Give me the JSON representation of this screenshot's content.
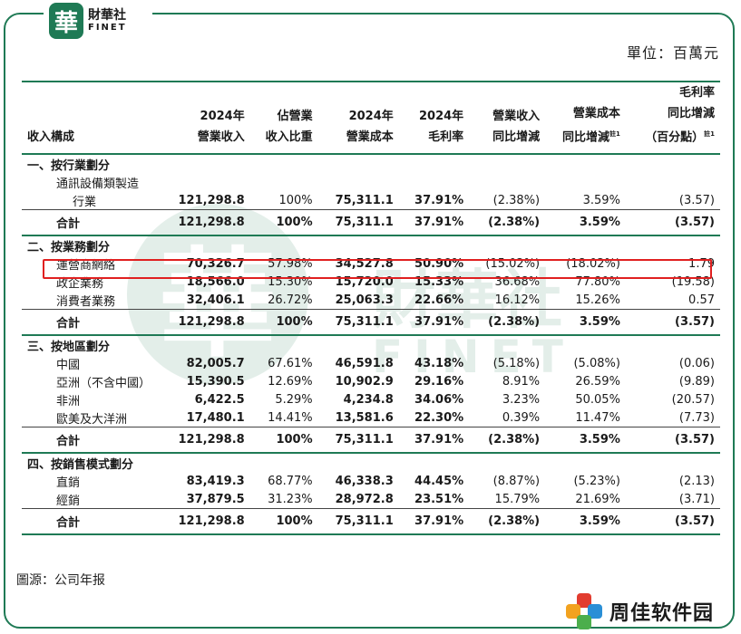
{
  "logo": {
    "mark": "華",
    "cn": "財華社",
    "en": "FINET"
  },
  "unit": "單位：百萬元",
  "watermark": {
    "mark": "華",
    "cn": "財華社",
    "en": "FINET"
  },
  "headers": {
    "col0": "收入構成",
    "col1": [
      "2024年",
      "營業收入"
    ],
    "col2": [
      "佔營業",
      "收入比重"
    ],
    "col3": [
      "2024年",
      "營業成本"
    ],
    "col4": [
      "2024年",
      "毛利率"
    ],
    "col5": [
      "營業收入",
      "同比增減"
    ],
    "col6": [
      "營業成本",
      "同比增減"
    ],
    "col7": [
      "毛利率",
      "同比增減",
      "（百分點）"
    ],
    "note": "註1"
  },
  "sections": {
    "s1": {
      "title": "一、按行業劃分",
      "row1": {
        "label1": "通訊設備類製造",
        "label2": "行業",
        "v": [
          "121,298.8",
          "100%",
          "75,311.1",
          "37.91%",
          "(2.38%)",
          "3.59%",
          "(3.57)"
        ]
      },
      "total": {
        "label": "合計",
        "v": [
          "121,298.8",
          "100%",
          "75,311.1",
          "37.91%",
          "(2.38%)",
          "3.59%",
          "(3.57)"
        ]
      }
    },
    "s2": {
      "title": "二、按業務劃分",
      "rows": [
        {
          "label": "運營商網絡",
          "v": [
            "70,326.7",
            "57.98%",
            "34,527.8",
            "50.90%",
            "(15.02%)",
            "(18.02%)",
            "1.79"
          ]
        },
        {
          "label": "政企業務",
          "v": [
            "18,566.0",
            "15.30%",
            "15,720.0",
            "15.33%",
            "36.68%",
            "77.80%",
            "(19.58)"
          ]
        },
        {
          "label": "消費者業務",
          "v": [
            "32,406.1",
            "26.72%",
            "25,063.3",
            "22.66%",
            "16.12%",
            "15.26%",
            "0.57"
          ]
        }
      ],
      "total": {
        "label": "合計",
        "v": [
          "121,298.8",
          "100%",
          "75,311.1",
          "37.91%",
          "(2.38%)",
          "3.59%",
          "(3.57)"
        ]
      }
    },
    "s3": {
      "title": "三、按地區劃分",
      "rows": [
        {
          "label": "中國",
          "v": [
            "82,005.7",
            "67.61%",
            "46,591.8",
            "43.18%",
            "(5.18%)",
            "(5.08%)",
            "(0.06)"
          ]
        },
        {
          "label": "亞洲（不含中國）",
          "v": [
            "15,390.5",
            "12.69%",
            "10,902.9",
            "29.16%",
            "8.91%",
            "26.59%",
            "(9.89)"
          ]
        },
        {
          "label": "非洲",
          "v": [
            "6,422.5",
            "5.29%",
            "4,234.8",
            "34.06%",
            "3.23%",
            "50.05%",
            "(20.57)"
          ]
        },
        {
          "label": "歐美及大洋洲",
          "v": [
            "17,480.1",
            "14.41%",
            "13,581.6",
            "22.30%",
            "0.39%",
            "11.47%",
            "(7.73)"
          ]
        }
      ],
      "total": {
        "label": "合計",
        "v": [
          "121,298.8",
          "100%",
          "75,311.1",
          "37.91%",
          "(2.38%)",
          "3.59%",
          "(3.57)"
        ]
      }
    },
    "s4": {
      "title": "四、按銷售模式劃分",
      "rows": [
        {
          "label": "直銷",
          "v": [
            "83,419.3",
            "68.77%",
            "46,338.3",
            "44.45%",
            "(8.87%)",
            "(5.23%)",
            "(2.13)"
          ]
        },
        {
          "label": "經銷",
          "v": [
            "37,879.5",
            "31.23%",
            "28,972.8",
            "23.51%",
            "15.79%",
            "21.69%",
            "(3.71)"
          ]
        }
      ],
      "total": {
        "label": "合計",
        "v": [
          "121,298.8",
          "100%",
          "75,311.1",
          "37.91%",
          "(2.38%)",
          "3.59%",
          "(3.57)"
        ]
      }
    }
  },
  "source": "圖源：公司年报",
  "brand": "周佳软件园",
  "colors": {
    "accent": "#1f7a55",
    "highlight": "#e02020"
  }
}
